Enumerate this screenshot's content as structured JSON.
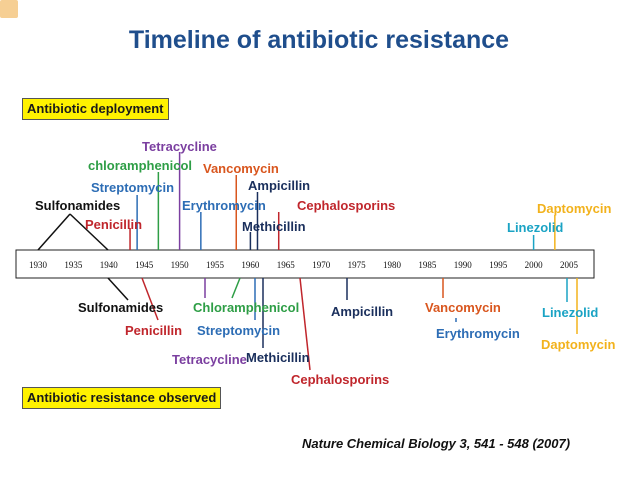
{
  "title": "Timeline of antibiotic resistance",
  "deployment_label": "Antibiotic deployment",
  "resistance_label": "Antibiotic resistance observed",
  "citation": "Nature Chemical Biology 3, 541 - 548 (2007)",
  "axis_ticks": [
    "1930",
    "1935",
    "1940",
    "1945",
    "1950",
    "1955",
    "1960",
    "1965",
    "1970",
    "1975",
    "1980",
    "1985",
    "1990",
    "1995",
    "2000",
    "2005"
  ],
  "colors": {
    "title": "#1f4e8c",
    "tag_bg": "#fff200",
    "black": "#111111",
    "red": "#c0262c",
    "blue": "#2d6db5",
    "purple": "#7b3fa0",
    "green": "#2e9e46",
    "orange": "#d9561e",
    "navy": "#1a2f5c",
    "teal": "#1aa3c4",
    "gold": "#f2b21c"
  },
  "deployment": [
    {
      "name": "Sulfonamides",
      "year": 1936,
      "color": "black"
    },
    {
      "name": "Penicillin",
      "year": 1943,
      "color": "red"
    },
    {
      "name": "Streptomycin",
      "year": 1944,
      "color": "blue"
    },
    {
      "name": "chloramphenicol",
      "year": 1947,
      "color": "green"
    },
    {
      "name": "Tetracycline",
      "year": 1950,
      "color": "purple"
    },
    {
      "name": "Erythromycin",
      "year": 1953,
      "color": "blue"
    },
    {
      "name": "Vancomycin",
      "year": 1958,
      "color": "orange"
    },
    {
      "name": "Methicillin",
      "year": 1960,
      "color": "navy"
    },
    {
      "name": "Ampicillin",
      "year": 1961,
      "color": "navy"
    },
    {
      "name": "Cephalosporins",
      "year": 1964,
      "color": "red"
    },
    {
      "name": "Linezolid",
      "year": 2000,
      "color": "teal"
    },
    {
      "name": "Daptomycin",
      "year": 2003,
      "color": "gold"
    }
  ],
  "resistance": [
    {
      "name": "Sulfonamides",
      "year": 1940,
      "color": "black"
    },
    {
      "name": "Penicillin",
      "year": 1945,
      "color": "red"
    },
    {
      "name": "Streptomycin",
      "year": 1959,
      "color": "blue"
    },
    {
      "name": "Tetracycline",
      "year": 1953,
      "color": "purple"
    },
    {
      "name": "Chloramphenicol",
      "year": 1959,
      "color": "green"
    },
    {
      "name": "Methicillin",
      "year": 1962,
      "color": "navy"
    },
    {
      "name": "Cephalosporins",
      "year": 1966,
      "color": "red"
    },
    {
      "name": "Ampicillin",
      "year": 1973,
      "color": "navy"
    },
    {
      "name": "Vancomycin",
      "year": 1988,
      "color": "orange"
    },
    {
      "name": "Erythromycin",
      "year": 1988,
      "color": "blue"
    },
    {
      "name": "Linezolid",
      "year": 2001,
      "color": "teal"
    },
    {
      "name": "Daptomycin",
      "year": 2005,
      "color": "gold"
    }
  ]
}
